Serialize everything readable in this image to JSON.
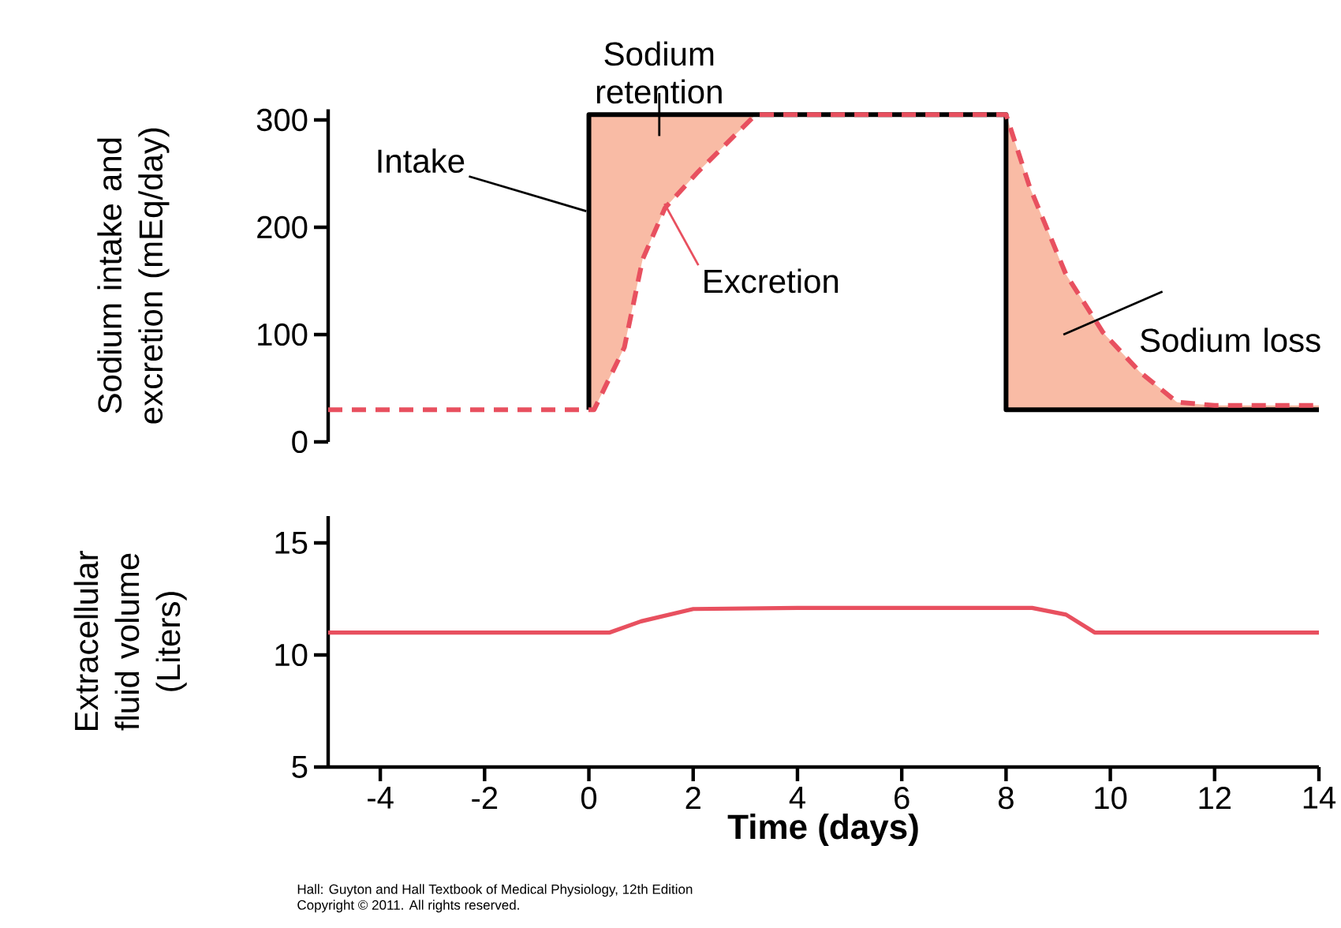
{
  "chart_data": [
    {
      "type": "line",
      "ylabel": "Sodium intake and excretion (mEq/day)",
      "xlim": [
        -5,
        14
      ],
      "ylim": [
        0,
        310
      ],
      "yticks": [
        0,
        100,
        200,
        300
      ],
      "tick_labels": "y",
      "grid": false,
      "series": [
        {
          "name": "Intake",
          "type": "step",
          "color": "#000000",
          "line_style": "solid",
          "x": [
            0,
            0,
            8,
            8,
            14
          ],
          "values": [
            30,
            305,
            305,
            30,
            30
          ]
        },
        {
          "name": "Excretion",
          "color": "#e8505f",
          "line_style": "dashed",
          "x": [
            -5,
            0.1,
            0.68,
            1.03,
            1.46,
            2.1,
            3.2,
            8.0,
            8.45,
            9.15,
            9.86,
            10.57,
            11.28,
            12,
            14
          ],
          "values": [
            30,
            30,
            88,
            170,
            218,
            252,
            305,
            305,
            238,
            156,
            102,
            65,
            37,
            34,
            34
          ]
        }
      ],
      "annotations": [
        "Sodium retention",
        "Sodium loss"
      ]
    },
    {
      "type": "line",
      "ylabel": "Extracellular fluid volume (Liters)",
      "xlabel": "Time (days)",
      "xlim": [
        -5,
        14
      ],
      "ylim": [
        5,
        16.2
      ],
      "xticks": [
        -4,
        -2,
        0,
        2,
        4,
        6,
        8,
        10,
        12,
        14
      ],
      "yticks": [
        5,
        10,
        15
      ],
      "grid": false,
      "series": [
        {
          "color": "#e8505f",
          "line_style": "solid",
          "x": [
            -5,
            0.4,
            1.0,
            2.0,
            4,
            6,
            8.5,
            9.15,
            9.7,
            14
          ],
          "values": [
            11,
            11,
            11.5,
            12.05,
            12.1,
            12.1,
            12.1,
            11.8,
            11.0,
            11
          ]
        }
      ],
      "annotations": [
        "Hall: Guyton and Hall Textbook of Medical Physiology, 12th Edition",
        "Copyright © 2011. All rights reserved."
      ]
    }
  ]
}
